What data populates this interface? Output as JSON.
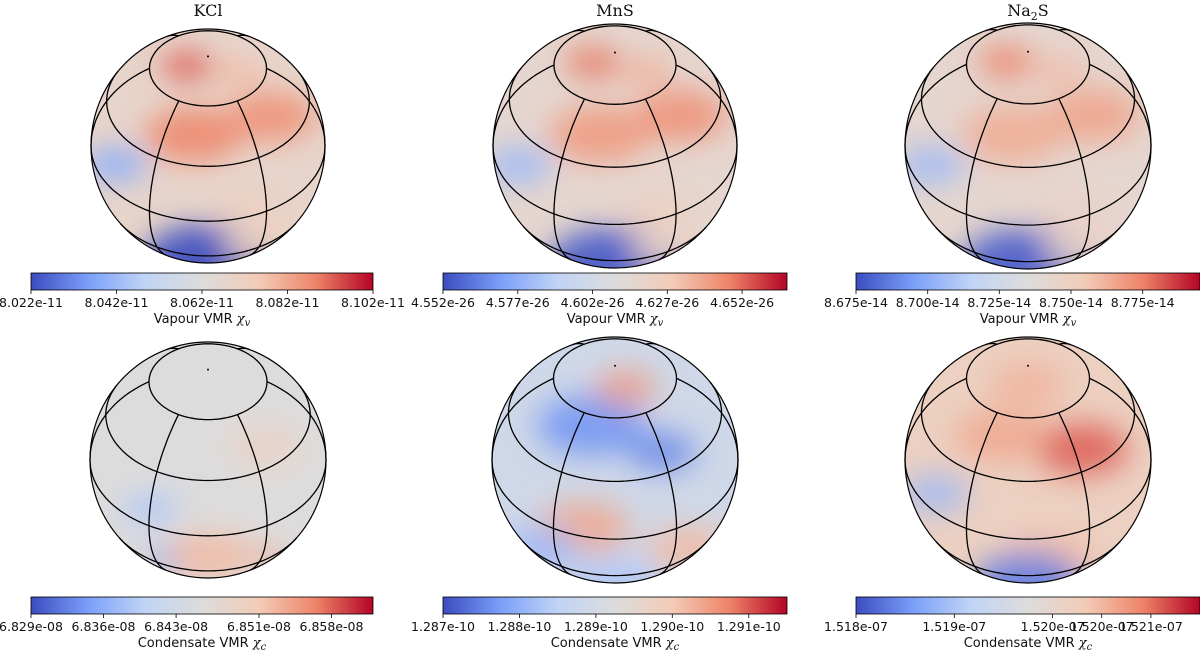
{
  "figure": {
    "colormap": [
      "#3b4cc0",
      "#7b9ff9",
      "#c0d4f5",
      "#dddcdc",
      "#f2cbb7",
      "#ee8468",
      "#b40426"
    ]
  },
  "panels": [
    {
      "title": "KCl",
      "chart_data": {
        "type": "heatmap",
        "projection": "orthographic globe with lat/lon grid",
        "title": "KCl",
        "quantity": "Vapour VMR",
        "colorbar": {
          "label_text": "Vapour VMR ",
          "label_symbol": "χ",
          "label_sub": "v",
          "range": [
            8.022e-11,
            8.102e-11
          ],
          "ticks": [
            "8.022e-11",
            "8.042e-11",
            "8.062e-11",
            "8.082e-11",
            "8.102e-11"
          ],
          "tick_values": [
            8.022e-11,
            8.042e-11,
            8.062e-11,
            8.082e-11,
            8.102e-11
          ]
        },
        "features": [
          {
            "lat": 45,
            "lon": -10,
            "level": 0.82,
            "size": 0.33
          },
          {
            "lat": 45,
            "lon": 50,
            "level": 0.8,
            "size": 0.3
          },
          {
            "lat": 78,
            "lon": -60,
            "level": 0.88,
            "size": 0.18
          },
          {
            "lat": 72,
            "lon": 55,
            "level": 0.7,
            "size": 0.18
          },
          {
            "lat": 15,
            "lon": -55,
            "level": 0.22,
            "size": 0.22
          },
          {
            "lat": 5,
            "lon": 20,
            "level": 0.62,
            "size": 0.25
          },
          {
            "lat": -40,
            "lon": 0,
            "level": 0.0,
            "size": 0.45
          },
          {
            "lat": -25,
            "lon": 30,
            "level": 0.62,
            "size": 0.25
          }
        ],
        "base_level": 0.58
      }
    },
    {
      "title": "MnS",
      "chart_data": {
        "type": "heatmap",
        "projection": "orthographic globe with lat/lon grid",
        "title": "MnS",
        "quantity": "Vapour VMR",
        "colorbar": {
          "label_text": "Vapour VMR ",
          "label_symbol": "χ",
          "label_sub": "v",
          "range": [
            4.552e-26,
            4.667e-26
          ],
          "ticks": [
            "4.552e-26",
            "4.577e-26",
            "4.602e-26",
            "4.627e-26",
            "4.652e-26"
          ],
          "tick_values": [
            4.552e-26,
            4.577e-26,
            4.602e-26,
            4.627e-26,
            4.652e-26
          ]
        },
        "features": [
          {
            "lat": 45,
            "lon": -10,
            "level": 0.78,
            "size": 0.33
          },
          {
            "lat": 45,
            "lon": 50,
            "level": 0.8,
            "size": 0.3
          },
          {
            "lat": 78,
            "lon": -60,
            "level": 0.85,
            "size": 0.18
          },
          {
            "lat": 72,
            "lon": 55,
            "level": 0.72,
            "size": 0.18
          },
          {
            "lat": 15,
            "lon": -55,
            "level": 0.25,
            "size": 0.22
          },
          {
            "lat": 5,
            "lon": 20,
            "level": 0.62,
            "size": 0.25
          },
          {
            "lat": -40,
            "lon": 0,
            "level": 0.02,
            "size": 0.45
          },
          {
            "lat": -25,
            "lon": 30,
            "level": 0.6,
            "size": 0.25
          }
        ],
        "base_level": 0.56
      }
    },
    {
      "title": "Na2S",
      "chart_data": {
        "type": "heatmap",
        "projection": "orthographic globe with lat/lon grid",
        "title": "Na2S",
        "quantity": "Vapour VMR",
        "colorbar": {
          "label_text": "Vapour VMR ",
          "label_symbol": "χ",
          "label_sub": "v",
          "range": [
            8.675e-14,
            8.795e-14
          ],
          "ticks": [
            "8.675e-14",
            "8.700e-14",
            "8.725e-14",
            "8.750e-14",
            "8.775e-14"
          ],
          "tick_values": [
            8.675e-14,
            8.7e-14,
            8.725e-14,
            8.75e-14,
            8.775e-14
          ]
        },
        "features": [
          {
            "lat": 45,
            "lon": -10,
            "level": 0.74,
            "size": 0.33
          },
          {
            "lat": 45,
            "lon": 50,
            "level": 0.76,
            "size": 0.3
          },
          {
            "lat": 78,
            "lon": -60,
            "level": 0.84,
            "size": 0.18
          },
          {
            "lat": 72,
            "lon": 55,
            "level": 0.7,
            "size": 0.18
          },
          {
            "lat": 15,
            "lon": -55,
            "level": 0.25,
            "size": 0.22
          },
          {
            "lat": 5,
            "lon": 20,
            "level": 0.6,
            "size": 0.25
          },
          {
            "lat": -40,
            "lon": 0,
            "level": 0.03,
            "size": 0.45
          },
          {
            "lat": -25,
            "lon": 30,
            "level": 0.6,
            "size": 0.25
          }
        ],
        "base_level": 0.56
      }
    },
    {
      "title": "",
      "chart_data": {
        "type": "heatmap",
        "projection": "orthographic globe with lat/lon grid",
        "title": "",
        "quantity": "Condensate VMR",
        "colorbar": {
          "label_text": "Condensate VMR ",
          "label_symbol": "χ",
          "label_sub": "c",
          "range": [
            6.829e-08,
            6.862e-08
          ],
          "ticks": [
            "6.829e-08",
            "6.836e-08",
            "6.843e-08",
            "6.851e-08",
            "6.858e-08"
          ],
          "tick_values": [
            6.829e-08,
            6.836e-08,
            6.843e-08,
            6.851e-08,
            6.858e-08
          ]
        },
        "features": [
          {
            "lat": 10,
            "lon": -30,
            "level": 0.3,
            "size": 0.2
          },
          {
            "lat": -15,
            "lon": 0,
            "level": 0.7,
            "size": 0.3
          },
          {
            "lat": -25,
            "lon": -25,
            "level": 0.15,
            "size": 0.1
          },
          {
            "lat": -28,
            "lon": 35,
            "level": 0.75,
            "size": 0.12
          },
          {
            "lat": 40,
            "lon": 40,
            "level": 0.6,
            "size": 0.25
          }
        ],
        "base_level": 0.5
      }
    },
    {
      "title": "",
      "chart_data": {
        "type": "heatmap",
        "projection": "orthographic globe with lat/lon grid",
        "title": "",
        "quantity": "Condensate VMR",
        "colorbar": {
          "label_text": "Condensate VMR ",
          "label_symbol": "χ",
          "label_sub": "c",
          "range": [
            1.287e-10,
            1.2915e-10
          ],
          "ticks": [
            "1.287e-10",
            "1.288e-10",
            "1.289e-10",
            "1.290e-10",
            "1.291e-10"
          ],
          "tick_values": [
            1.287e-10,
            1.288e-10,
            1.289e-10,
            1.29e-10,
            1.291e-10
          ]
        },
        "features": [
          {
            "lat": 55,
            "lon": -20,
            "level": 0.15,
            "size": 0.35
          },
          {
            "lat": 40,
            "lon": 30,
            "level": 0.12,
            "size": 0.22
          },
          {
            "lat": 75,
            "lon": 20,
            "level": 0.78,
            "size": 0.2
          },
          {
            "lat": 5,
            "lon": -15,
            "level": 0.75,
            "size": 0.3
          },
          {
            "lat": -20,
            "lon": -40,
            "level": 0.25,
            "size": 0.25
          },
          {
            "lat": -20,
            "lon": 40,
            "level": 0.7,
            "size": 0.28
          },
          {
            "lat": -45,
            "lon": 0,
            "level": 0.3,
            "size": 0.3
          }
        ],
        "base_level": 0.42
      }
    },
    {
      "title": "",
      "chart_data": {
        "type": "heatmap",
        "projection": "orthographic globe with lat/lon grid",
        "title": "",
        "quantity": "Condensate VMR",
        "colorbar": {
          "label_text": "Condensate VMR ",
          "label_symbol": "χ",
          "label_sub": "c",
          "range": [
            1.518e-07,
            1.5215e-07
          ],
          "ticks": [
            "1.518e-07",
            "1.519e-07",
            "1.520e-07",
            "1.520e-07",
            "1.521e-07"
          ],
          "tick_values": [
            1.518e-07,
            1.519e-07,
            1.52e-07,
            1.5205e-07,
            1.521e-07
          ]
        },
        "features": [
          {
            "lat": 40,
            "lon": 35,
            "level": 0.88,
            "size": 0.3
          },
          {
            "lat": 50,
            "lon": -20,
            "level": 0.75,
            "size": 0.3
          },
          {
            "lat": 78,
            "lon": 0,
            "level": 0.72,
            "size": 0.25
          },
          {
            "lat": 10,
            "lon": -50,
            "level": 0.25,
            "size": 0.22
          },
          {
            "lat": -15,
            "lon": 10,
            "level": 0.7,
            "size": 0.3
          },
          {
            "lat": -50,
            "lon": 0,
            "level": 0.1,
            "size": 0.35
          }
        ],
        "base_level": 0.62
      }
    }
  ]
}
